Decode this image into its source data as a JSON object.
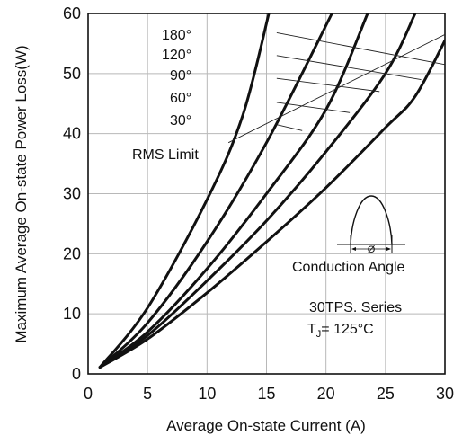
{
  "chart_data": {
    "type": "line",
    "title": "",
    "xlabel": "Average On-state Current (A)",
    "ylabel": "Maximum Average On-state Power Loss(W)",
    "xlim": [
      0,
      30
    ],
    "ylim": [
      0,
      60
    ],
    "x_ticks": [
      "0",
      "5",
      "10",
      "15",
      "20",
      "25",
      "30"
    ],
    "y_ticks": [
      "0",
      "10",
      "20",
      "30",
      "40",
      "50",
      "60"
    ],
    "grid": true,
    "series": [
      {
        "name": "180°",
        "color": "#111111",
        "points": [
          [
            1,
            1.1
          ],
          [
            5,
            5.8
          ],
          [
            10,
            13.5
          ],
          [
            15,
            22
          ],
          [
            20,
            31
          ],
          [
            25,
            41
          ],
          [
            27.5,
            46.2
          ],
          [
            30,
            55.5
          ]
        ]
      },
      {
        "name": "120°",
        "color": "#111111",
        "points": [
          [
            1,
            1.1
          ],
          [
            5,
            6.4
          ],
          [
            10,
            15.5
          ],
          [
            15,
            25.5
          ],
          [
            20,
            37
          ],
          [
            25,
            50
          ],
          [
            27.5,
            60
          ]
        ]
      },
      {
        "name": "90°",
        "color": "#111111",
        "points": [
          [
            1,
            1.1
          ],
          [
            5,
            7
          ],
          [
            10,
            17.5
          ],
          [
            15,
            30
          ],
          [
            20,
            44
          ],
          [
            23.5,
            60
          ]
        ]
      },
      {
        "name": "60°",
        "color": "#111111",
        "points": [
          [
            1,
            1.1
          ],
          [
            5,
            8.5
          ],
          [
            10,
            22
          ],
          [
            15,
            38.5
          ],
          [
            20.5,
            60
          ]
        ]
      },
      {
        "name": "30°",
        "color": "#111111",
        "points": [
          [
            1,
            1.1
          ],
          [
            5,
            11
          ],
          [
            10,
            29
          ],
          [
            13,
            43
          ],
          [
            15.2,
            60
          ]
        ]
      }
    ],
    "rms_limit": {
      "label": "RMS Limit",
      "points": [
        [
          11.8,
          38.5
        ],
        [
          30,
          56.5
        ]
      ]
    },
    "angle_labels": [
      "180°",
      "120°",
      "90°",
      "60°",
      "30°"
    ],
    "angle_leaders": [
      {
        "from": [
          14.8,
          56.8
        ],
        "to": [
          30,
          51.5
        ]
      },
      {
        "from": [
          14.8,
          53.0
        ],
        "to": [
          28.0,
          49.0
        ]
      },
      {
        "from": [
          14.8,
          49.2
        ],
        "to": [
          24.5,
          47.0
        ]
      },
      {
        "from": [
          14.8,
          45.2
        ],
        "to": [
          22.0,
          43.5
        ]
      },
      {
        "from": [
          14.8,
          41.5
        ],
        "to": [
          18.0,
          40.5
        ]
      }
    ],
    "inset": {
      "caption": "Conduction Angle",
      "symbol": "Ø"
    },
    "series_label": "30TPS. Series",
    "tj_label": "T",
    "tj_sub": "J",
    "tj_value": "= 125°C"
  }
}
